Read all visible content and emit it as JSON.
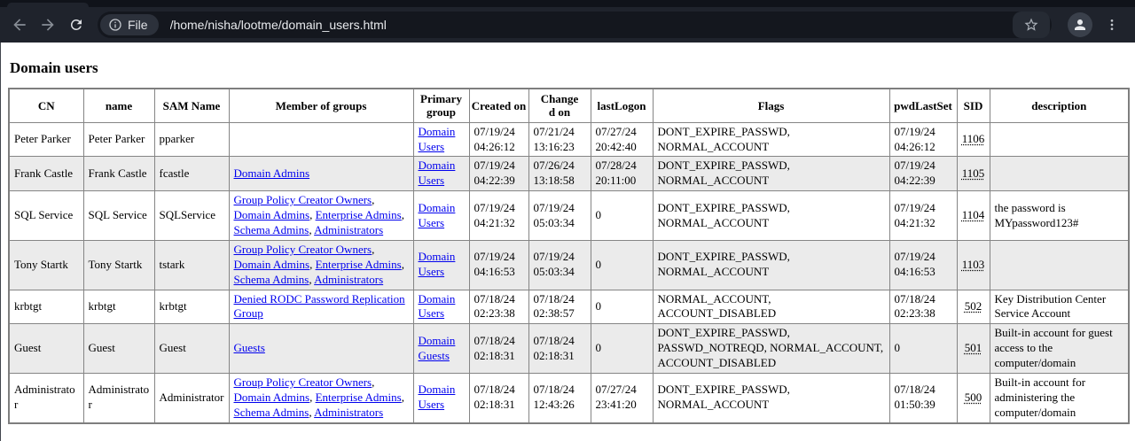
{
  "browser": {
    "url": "/home/nisha/lootme/domain_users.html",
    "file_chip": "File",
    "icons": [
      "back-arrow-icon",
      "forward-arrow-icon",
      "reload-icon",
      "info-icon",
      "bookmark-star-icon",
      "profile-icon",
      "menu-dots-icon"
    ]
  },
  "page": {
    "title": "Domain users"
  },
  "colors": {
    "link": "#0000EE",
    "row_alt": "#EBEBEB",
    "toolbar_bg": "#1F232C",
    "omnibox_bg": "#14171E"
  },
  "table": {
    "headers": [
      "CN",
      "name",
      "SAM Name",
      "Member of groups",
      "Primary group",
      "Created on",
      "Changed on",
      "lastLogon",
      "Flags",
      "pwdLastSet",
      "SID",
      "description"
    ],
    "rows": [
      {
        "cn": "Peter Parker",
        "name": "Peter Parker",
        "sam": "pparker",
        "member_of": [],
        "primary_group": "Domain Users",
        "created": "07/19/24 04:26:12",
        "changed": "07/21/24 13:16:23",
        "last_logon": "07/27/24 20:42:40",
        "flags": "DONT_EXPIRE_PASSWD, NORMAL_ACCOUNT",
        "pwd_last_set": "07/19/24 04:26:12",
        "sid": "1106",
        "description": ""
      },
      {
        "cn": "Frank Castle",
        "name": "Frank Castle",
        "sam": "fcastle",
        "member_of": [
          "Domain Admins"
        ],
        "primary_group": "Domain Users",
        "created": "07/19/24 04:22:39",
        "changed": "07/26/24 13:18:58",
        "last_logon": "07/28/24 20:11:00",
        "flags": "DONT_EXPIRE_PASSWD, NORMAL_ACCOUNT",
        "pwd_last_set": "07/19/24 04:22:39",
        "sid": "1105",
        "description": ""
      },
      {
        "cn": "SQL Service",
        "name": "SQL Service",
        "sam": "SQLService",
        "member_of": [
          "Group Policy Creator Owners",
          "Domain Admins",
          "Enterprise Admins",
          "Schema Admins",
          "Administrators"
        ],
        "primary_group": "Domain Users",
        "created": "07/19/24 04:21:32",
        "changed": "07/19/24 05:03:34",
        "last_logon": "0",
        "flags": "DONT_EXPIRE_PASSWD, NORMAL_ACCOUNT",
        "pwd_last_set": "07/19/24 04:21:32",
        "sid": "1104",
        "description": "the password is MYpassword123#"
      },
      {
        "cn": "Tony Startk",
        "name": "Tony Startk",
        "sam": "tstark",
        "member_of": [
          "Group Policy Creator Owners",
          "Domain Admins",
          "Enterprise Admins",
          "Schema Admins",
          "Administrators"
        ],
        "primary_group": "Domain Users",
        "created": "07/19/24 04:16:53",
        "changed": "07/19/24 05:03:34",
        "last_logon": "0",
        "flags": "DONT_EXPIRE_PASSWD, NORMAL_ACCOUNT",
        "pwd_last_set": "07/19/24 04:16:53",
        "sid": "1103",
        "description": ""
      },
      {
        "cn": "krbtgt",
        "name": "krbtgt",
        "sam": "krbtgt",
        "member_of": [
          "Denied RODC Password Replication Group"
        ],
        "primary_group": "Domain Users",
        "created": "07/18/24 02:23:38",
        "changed": "07/18/24 02:38:57",
        "last_logon": "0",
        "flags": "NORMAL_ACCOUNT, ACCOUNT_DISABLED",
        "pwd_last_set": "07/18/24 02:23:38",
        "sid": "502",
        "description": "Key Distribution Center Service Account"
      },
      {
        "cn": "Guest",
        "name": "Guest",
        "sam": "Guest",
        "member_of": [
          "Guests"
        ],
        "primary_group": "Domain Guests",
        "created": "07/18/24 02:18:31",
        "changed": "07/18/24 02:18:31",
        "last_logon": "0",
        "flags": "DONT_EXPIRE_PASSWD, PASSWD_NOTREQD, NORMAL_ACCOUNT, ACCOUNT_DISABLED",
        "pwd_last_set": "0",
        "sid": "501",
        "description": "Built-in account for guest access to the computer/domain"
      },
      {
        "cn": "Administrator",
        "name": "Administrator",
        "sam": "Administrator",
        "member_of": [
          "Group Policy Creator Owners",
          "Domain Admins",
          "Enterprise Admins",
          "Schema Admins",
          "Administrators"
        ],
        "primary_group": "Domain Users",
        "created": "07/18/24 02:18:31",
        "changed": "07/18/24 12:43:26",
        "last_logon": "07/27/24 23:41:20",
        "flags": "DONT_EXPIRE_PASSWD, NORMAL_ACCOUNT",
        "pwd_last_set": "07/18/24 01:50:39",
        "sid": "500",
        "description": "Built-in account for administering the computer/domain"
      }
    ]
  }
}
